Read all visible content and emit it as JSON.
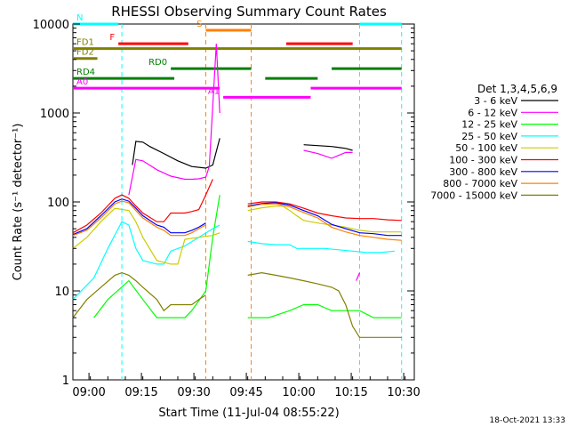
{
  "title": "RHESSI Observing Summary Count Rates",
  "xlabel": "Start Time (11-Jul-04 08:55:22)",
  "ylabel": "Count Rate (s⁻¹ detector⁻¹)",
  "footer_date": "18-Oct-2021 13:33",
  "legend_title": "Det 1,3,4,5,6,9",
  "chart_data": {
    "type": "line",
    "title": "RHESSI Observing Summary Count Rates",
    "xlabel": "Start Time (11-Jul-04 08:55:22)",
    "ylabel": "Count Rate (s⁻¹ detector⁻¹)",
    "y_scale": "log",
    "ylim": [
      1,
      10000
    ],
    "xlim": [
      "08:55:22",
      "10:33:00"
    ],
    "x_ticks": [
      "09:00",
      "09:15",
      "09:30",
      "09:45",
      "10:00",
      "10:15",
      "10:30"
    ],
    "x_tick_minutes": [
      4.6,
      19.6,
      34.6,
      49.6,
      64.6,
      79.6,
      94.6
    ],
    "y_ticks": [
      "1",
      "10",
      "100",
      "1000",
      "10000"
    ],
    "y_tick_values": [
      1,
      10,
      100,
      1000,
      10000
    ],
    "legend_position": "right",
    "series": [
      {
        "name": "3 - 6 keV",
        "color": "#000000",
        "segments": [
          [
            [
              16,
              null
            ],
            [
              17,
              260
            ],
            [
              18,
              480
            ],
            [
              20,
              470
            ],
            [
              22,
              420
            ],
            [
              26,
              350
            ],
            [
              30,
              290
            ],
            [
              34,
              250
            ],
            [
              38,
              240
            ],
            [
              40,
              260
            ],
            [
              42,
              520
            ]
          ],
          [
            [
              60,
              null
            ],
            [
              66,
              440
            ],
            [
              70,
              430
            ],
            [
              74,
              420
            ],
            [
              78,
              400
            ],
            [
              80,
              380
            ]
          ]
        ]
      },
      {
        "name": "6 - 12 keV",
        "color": "#ff00ff",
        "segments": [
          [
            [
              16,
              120
            ],
            [
              18,
              300
            ],
            [
              20,
              290
            ],
            [
              24,
              230
            ],
            [
              28,
              195
            ],
            [
              32,
              180
            ],
            [
              34,
              180
            ],
            [
              36,
              182
            ],
            [
              38,
              190
            ],
            [
              39,
              250
            ],
            [
              40,
              1200
            ],
            [
              41,
              6000
            ],
            [
              42,
              1000
            ]
          ],
          [
            [
              66,
              380
            ],
            [
              70,
              350
            ],
            [
              74,
              310
            ],
            [
              78,
              360
            ],
            [
              80,
              360
            ]
          ],
          [
            [
              81,
              13
            ],
            [
              82,
              16
            ]
          ]
        ]
      },
      {
        "name": "12 - 25 keV",
        "color": "#00ff00",
        "segments": [
          [
            [
              0,
              null
            ],
            [
              6,
              5
            ],
            [
              10,
              8
            ],
            [
              16,
              13
            ],
            [
              20,
              8
            ],
            [
              24,
              5
            ],
            [
              28,
              5
            ],
            [
              32,
              5
            ],
            [
              34,
              6
            ],
            [
              38,
              10
            ],
            [
              40,
              40
            ],
            [
              42,
              120
            ]
          ],
          [
            [
              50,
              5
            ],
            [
              56,
              5
            ],
            [
              62,
              6
            ],
            [
              66,
              7
            ],
            [
              70,
              7
            ],
            [
              74,
              6
            ],
            [
              78,
              6
            ],
            [
              82,
              6
            ],
            [
              86,
              5
            ],
            [
              90,
              5
            ],
            [
              94,
              5
            ]
          ]
        ]
      },
      {
        "name": "25 - 50 keV",
        "color": "#00ffff",
        "segments": [
          [
            [
              0,
              8
            ],
            [
              6,
              14
            ],
            [
              10,
              30
            ],
            [
              14,
              60
            ],
            [
              16,
              55
            ],
            [
              18,
              30
            ],
            [
              20,
              22
            ],
            [
              24,
              20
            ],
            [
              26,
              20
            ],
            [
              28,
              28
            ],
            [
              32,
              32
            ],
            [
              36,
              40
            ],
            [
              40,
              50
            ],
            [
              42,
              55
            ]
          ],
          [
            [
              50,
              36
            ],
            [
              54,
              34
            ],
            [
              58,
              33
            ],
            [
              62,
              33
            ],
            [
              64,
              30
            ],
            [
              66,
              30
            ],
            [
              68,
              30
            ],
            [
              72,
              30
            ],
            [
              76,
              29
            ],
            [
              80,
              28
            ],
            [
              84,
              27
            ],
            [
              88,
              27
            ],
            [
              92,
              28
            ]
          ]
        ]
      },
      {
        "name": "50 - 100 keV",
        "color": "#cccc00",
        "segments": [
          [
            [
              0,
              30
            ],
            [
              4,
              40
            ],
            [
              8,
              60
            ],
            [
              12,
              85
            ],
            [
              16,
              80
            ],
            [
              18,
              60
            ],
            [
              20,
              40
            ],
            [
              24,
              22
            ],
            [
              28,
              20
            ],
            [
              30,
              20
            ],
            [
              32,
              38
            ],
            [
              36,
              40
            ],
            [
              38,
              41
            ],
            [
              40,
              42
            ],
            [
              42,
              45
            ]
          ],
          [
            [
              50,
              80
            ],
            [
              54,
              86
            ],
            [
              58,
              90
            ],
            [
              60,
              90
            ],
            [
              62,
              80
            ],
            [
              64,
              70
            ],
            [
              66,
              62
            ],
            [
              70,
              58
            ],
            [
              74,
              55
            ],
            [
              78,
              52
            ],
            [
              82,
              48
            ],
            [
              86,
              46
            ],
            [
              90,
              46
            ],
            [
              94,
              46
            ]
          ]
        ]
      },
      {
        "name": "100 - 300 keV",
        "color": "#ff0000",
        "segments": [
          [
            [
              0,
              45
            ],
            [
              4,
              55
            ],
            [
              8,
              75
            ],
            [
              12,
              110
            ],
            [
              14,
              120
            ],
            [
              16,
              110
            ],
            [
              18,
              90
            ],
            [
              20,
              75
            ],
            [
              24,
              60
            ],
            [
              26,
              60
            ],
            [
              28,
              75
            ],
            [
              32,
              75
            ],
            [
              34,
              78
            ],
            [
              36,
              82
            ],
            [
              38,
              120
            ],
            [
              40,
              180
            ]
          ],
          [
            [
              50,
              95
            ],
            [
              54,
              100
            ],
            [
              58,
              100
            ],
            [
              62,
              95
            ],
            [
              66,
              85
            ],
            [
              70,
              75
            ],
            [
              74,
              70
            ],
            [
              78,
              66
            ],
            [
              82,
              65
            ],
            [
              86,
              65
            ],
            [
              90,
              63
            ],
            [
              94,
              62
            ]
          ]
        ]
      },
      {
        "name": "300 - 800 keV",
        "color": "#0000ff",
        "segments": [
          [
            [
              0,
              43
            ],
            [
              4,
              50
            ],
            [
              8,
              70
            ],
            [
              12,
              100
            ],
            [
              14,
              108
            ],
            [
              16,
              102
            ],
            [
              18,
              85
            ],
            [
              20,
              70
            ],
            [
              24,
              55
            ],
            [
              26,
              52
            ],
            [
              28,
              45
            ],
            [
              32,
              45
            ],
            [
              34,
              48
            ],
            [
              36,
              52
            ],
            [
              38,
              58
            ]
          ],
          [
            [
              50,
              90
            ],
            [
              54,
              96
            ],
            [
              58,
              98
            ],
            [
              62,
              92
            ],
            [
              66,
              80
            ],
            [
              70,
              70
            ],
            [
              74,
              56
            ],
            [
              78,
              50
            ],
            [
              82,
              45
            ],
            [
              86,
              44
            ],
            [
              90,
              42
            ],
            [
              94,
              42
            ]
          ]
        ]
      },
      {
        "name": "800 - 7000 keV",
        "color": "#ff8000",
        "segments": [
          [
            [
              0,
              42
            ],
            [
              4,
              48
            ],
            [
              8,
              66
            ],
            [
              12,
              95
            ],
            [
              14,
              102
            ],
            [
              16,
              98
            ],
            [
              18,
              80
            ],
            [
              20,
              66
            ],
            [
              24,
              52
            ],
            [
              26,
              48
            ],
            [
              28,
              42
            ],
            [
              32,
              42
            ],
            [
              34,
              45
            ],
            [
              36,
              50
            ],
            [
              38,
              55
            ]
          ],
          [
            [
              50,
              88
            ],
            [
              54,
              94
            ],
            [
              58,
              95
            ],
            [
              62,
              88
            ],
            [
              66,
              76
            ],
            [
              70,
              66
            ],
            [
              74,
              52
            ],
            [
              78,
              46
            ],
            [
              82,
              42
            ],
            [
              86,
              40
            ],
            [
              90,
              38
            ],
            [
              94,
              37
            ]
          ]
        ]
      },
      {
        "name": "7000 - 15000 keV",
        "color": "#808000",
        "segments": [
          [
            [
              0,
              5
            ],
            [
              4,
              8
            ],
            [
              8,
              11
            ],
            [
              12,
              15
            ],
            [
              14,
              16
            ],
            [
              16,
              15
            ],
            [
              18,
              13
            ],
            [
              20,
              11
            ],
            [
              24,
              8
            ],
            [
              26,
              6
            ],
            [
              28,
              7
            ],
            [
              32,
              7
            ],
            [
              34,
              7
            ],
            [
              36,
              8
            ],
            [
              38,
              9
            ]
          ],
          [
            [
              50,
              15
            ],
            [
              54,
              16
            ],
            [
              58,
              15
            ],
            [
              62,
              14
            ],
            [
              66,
              13
            ],
            [
              70,
              12
            ],
            [
              74,
              11
            ],
            [
              76,
              10
            ],
            [
              78,
              7
            ],
            [
              80,
              4
            ],
            [
              82,
              3
            ],
            [
              86,
              3
            ],
            [
              90,
              3
            ],
            [
              94,
              3
            ]
          ]
        ]
      }
    ],
    "flag_rows": [
      {
        "label": "N",
        "color": "#00ffff",
        "row": 10000,
        "segments": [
          [
            0,
            13
          ],
          [
            82,
            94
          ]
        ]
      },
      {
        "label": "S",
        "color": "#ff8000",
        "row": 8500,
        "segments": [
          [
            38,
            51
          ]
        ]
      },
      {
        "label": "F",
        "color": "#ff0000",
        "row": 6000,
        "segments": [
          [
            13,
            33
          ],
          [
            61,
            80
          ]
        ]
      },
      {
        "label": "FD1",
        "color": "#808000",
        "row": 5300,
        "segments": [
          [
            0,
            94
          ]
        ]
      },
      {
        "label": "FD2",
        "color": "#808000",
        "row": 4100,
        "segments": [
          [
            0,
            7
          ]
        ]
      },
      {
        "label": "RD0",
        "color": "#008000",
        "row": 3150,
        "segments": [
          [
            28,
            51
          ],
          [
            74,
            94
          ]
        ]
      },
      {
        "label": "RD4",
        "color": "#008000",
        "row": 2450,
        "segments": [
          [
            0,
            29
          ],
          [
            55,
            70
          ]
        ]
      },
      {
        "label": "A0",
        "color": "#ff00ff",
        "row": 1900,
        "segments": [
          [
            0,
            42
          ],
          [
            68,
            94
          ]
        ]
      },
      {
        "label": "A1",
        "color": "#ff00ff",
        "row": 1500,
        "segments": [
          [
            43,
            68
          ]
        ]
      }
    ],
    "vlines": [
      {
        "minute": 14,
        "color": "#00ffff"
      },
      {
        "minute": 38,
        "color": "#ff8000"
      },
      {
        "minute": 51,
        "color": "#ff8000"
      },
      {
        "minute": 82,
        "color": "#00ffff"
      },
      {
        "minute": 94,
        "color": "#00ffff"
      }
    ]
  }
}
